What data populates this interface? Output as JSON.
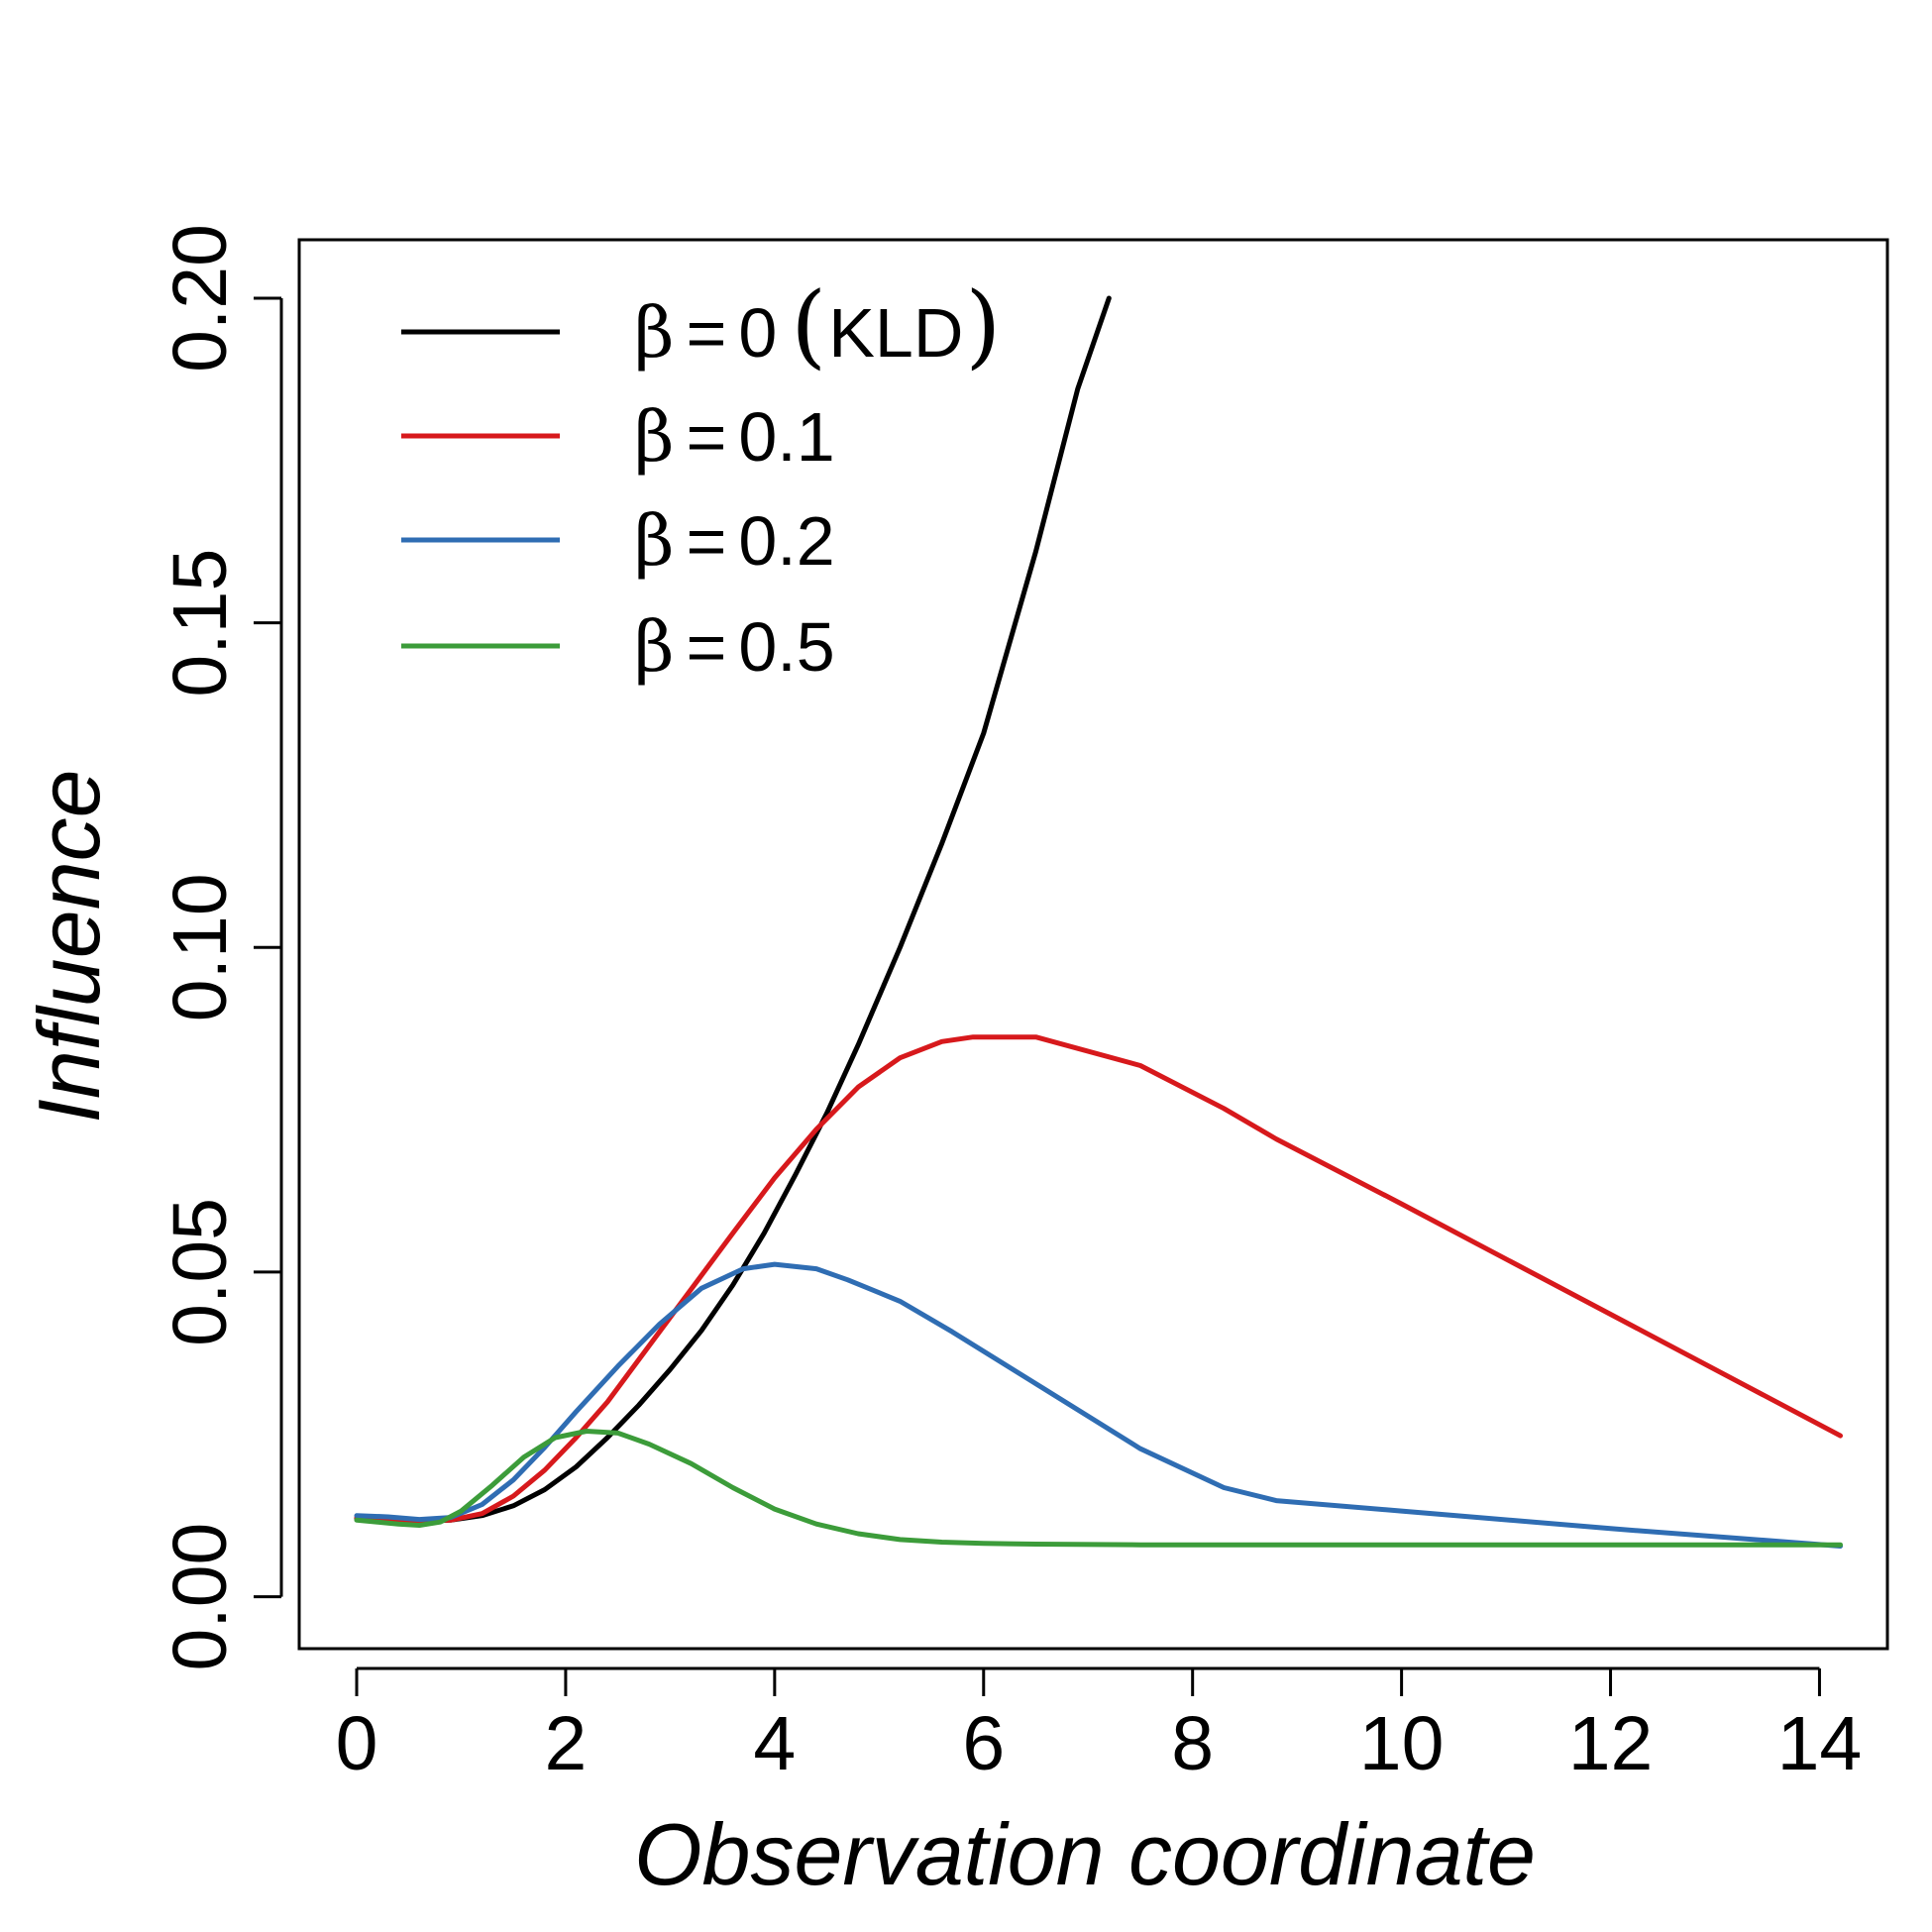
{
  "chart_data": {
    "type": "line",
    "title": "",
    "xlabel": "Observation coordinate",
    "ylabel": "Influence",
    "xlim": [
      -0.55,
      14.65
    ],
    "ylim": [
      -0.008,
      0.209
    ],
    "x_ticks": [
      0,
      2,
      4,
      6,
      8,
      10,
      12,
      14
    ],
    "x_tick_labels": [
      "0",
      "2",
      "4",
      "6",
      "8",
      "10",
      "12",
      "14"
    ],
    "y_ticks": [
      0.0,
      0.05,
      0.1,
      0.15,
      0.2
    ],
    "y_tick_labels": [
      "0.00",
      "0.05",
      "0.10",
      "0.15",
      "0.20"
    ],
    "grid": false,
    "legend_position": "top-left",
    "series": [
      {
        "name": "β = 0 (KLD)",
        "legend": {
          "beta": "β",
          "eq": "=",
          "value": "0",
          "open": "(",
          "label": "KLD",
          "close": ")"
        },
        "color": "#000000",
        "x": [
          0,
          0.3,
          0.6,
          0.9,
          1.2,
          1.5,
          1.8,
          2.1,
          2.4,
          2.7,
          3.0,
          3.3,
          3.6,
          3.9,
          4.2,
          4.5,
          4.8,
          5.2,
          5.6,
          6.0,
          6.5,
          6.9,
          7.2
        ],
        "values": [
          0.012,
          0.0118,
          0.0116,
          0.0118,
          0.0125,
          0.014,
          0.0165,
          0.02,
          0.0245,
          0.0295,
          0.035,
          0.041,
          0.048,
          0.056,
          0.065,
          0.0745,
          0.085,
          0.1,
          0.116,
          0.133,
          0.161,
          0.186,
          0.2
        ]
      },
      {
        "name": "β = 0.1",
        "legend": {
          "beta": "β",
          "eq": "=",
          "value": "0.1"
        },
        "color": "#d7191c",
        "x": [
          0,
          0.3,
          0.6,
          0.9,
          1.2,
          1.5,
          1.8,
          2.1,
          2.4,
          2.7,
          3.0,
          3.3,
          3.6,
          4.0,
          4.4,
          4.8,
          5.2,
          5.6,
          5.9,
          6.5,
          7.5,
          8.3,
          8.8,
          10.0,
          12.0,
          14.2
        ],
        "values": [
          0.0122,
          0.012,
          0.0117,
          0.0118,
          0.0128,
          0.0155,
          0.0195,
          0.0245,
          0.03,
          0.0365,
          0.043,
          0.0495,
          0.056,
          0.0645,
          0.072,
          0.0785,
          0.083,
          0.0855,
          0.0862,
          0.0862,
          0.0818,
          0.0752,
          0.0705,
          0.0605,
          0.0435,
          0.0248
        ]
      },
      {
        "name": "β = 0.2",
        "legend": {
          "beta": "β",
          "eq": "=",
          "value": "0.2"
        },
        "color": "#2f6db3",
        "x": [
          0,
          0.3,
          0.6,
          0.9,
          1.2,
          1.5,
          1.8,
          2.1,
          2.5,
          2.9,
          3.3,
          3.7,
          4.0,
          4.4,
          4.7,
          5.2,
          5.7,
          6.2,
          6.5,
          7.5,
          8.3,
          8.8,
          10.0,
          12.0,
          14.2
        ],
        "values": [
          0.0125,
          0.0123,
          0.0119,
          0.0122,
          0.0142,
          0.018,
          0.023,
          0.0285,
          0.0355,
          0.042,
          0.0475,
          0.0505,
          0.0512,
          0.0505,
          0.0488,
          0.0455,
          0.0408,
          0.0358,
          0.0328,
          0.0228,
          0.0168,
          0.0148,
          0.0132,
          0.0105,
          0.0078
        ]
      },
      {
        "name": "β = 0.5",
        "legend": {
          "beta": "β",
          "eq": "=",
          "value": "0.5"
        },
        "color": "#3c9c3a",
        "x": [
          0,
          0.2,
          0.4,
          0.6,
          0.8,
          1.0,
          1.3,
          1.6,
          1.9,
          2.2,
          2.5,
          2.8,
          3.2,
          3.6,
          4.0,
          4.4,
          4.8,
          5.2,
          5.6,
          6.0,
          6.5,
          7.5,
          8.5,
          10.0,
          12.0,
          14.2
        ],
        "values": [
          0.0118,
          0.0115,
          0.0112,
          0.011,
          0.0115,
          0.0132,
          0.0172,
          0.0215,
          0.0245,
          0.0255,
          0.0252,
          0.0235,
          0.0205,
          0.0168,
          0.0135,
          0.0112,
          0.0097,
          0.0088,
          0.0084,
          0.0082,
          0.0081,
          0.008,
          0.008,
          0.008,
          0.008,
          0.008
        ]
      }
    ]
  }
}
